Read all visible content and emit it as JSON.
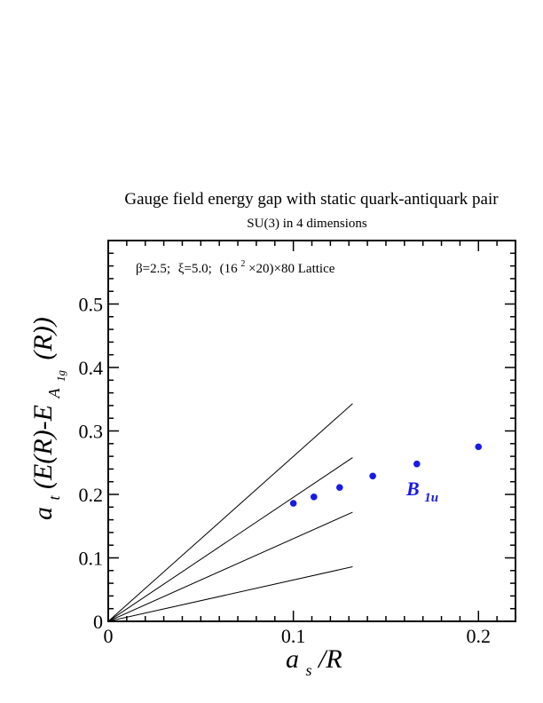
{
  "chart_data": {
    "type": "scatter",
    "title": "Gauge field energy gap with static quark-antiquark pair",
    "subtitle": "SU(3) in 4 dimensions",
    "xlabel": {
      "main": "a",
      "sub": "s",
      "rest": "/R"
    },
    "ylabel": {
      "a": "a",
      "a_sub": "t",
      "mid": "(E(R)-E",
      "e_sub": "A",
      "e_subsub": "1g",
      "end": "(R))"
    },
    "xlim": [
      0,
      0.22
    ],
    "ylim": [
      0,
      0.6
    ],
    "x_ticks": [
      0,
      0.1,
      0.2
    ],
    "x_tick_labels": [
      "0",
      "0.1",
      "0.2"
    ],
    "y_ticks": [
      0,
      0.1,
      0.2,
      0.3,
      0.4,
      0.5
    ],
    "y_tick_labels": [
      "0",
      "0.1",
      "0.2",
      "0.3",
      "0.4",
      "0.5"
    ],
    "annotation": {
      "beta": "β=2.5;",
      "xi": "ξ=5.0;",
      "lattice_a": "(16",
      "lattice_sup": "2",
      "lattice_b": "×20)×80 Lattice"
    },
    "series": [
      {
        "name": "B",
        "name_sub": "1u",
        "color": "#1a1ae6",
        "x": [
          0.1,
          0.1111,
          0.125,
          0.1429,
          0.1667,
          0.2
        ],
        "y": [
          0.186,
          0.196,
          0.211,
          0.229,
          0.248,
          0.275
        ]
      }
    ],
    "reference_lines": [
      {
        "x": [
          0,
          0.132
        ],
        "y": [
          0,
          0.343
        ]
      },
      {
        "x": [
          0,
          0.132
        ],
        "y": [
          0,
          0.258
        ]
      },
      {
        "x": [
          0,
          0.132
        ],
        "y": [
          0,
          0.172
        ]
      },
      {
        "x": [
          0,
          0.132
        ],
        "y": [
          0,
          0.086
        ]
      }
    ]
  }
}
